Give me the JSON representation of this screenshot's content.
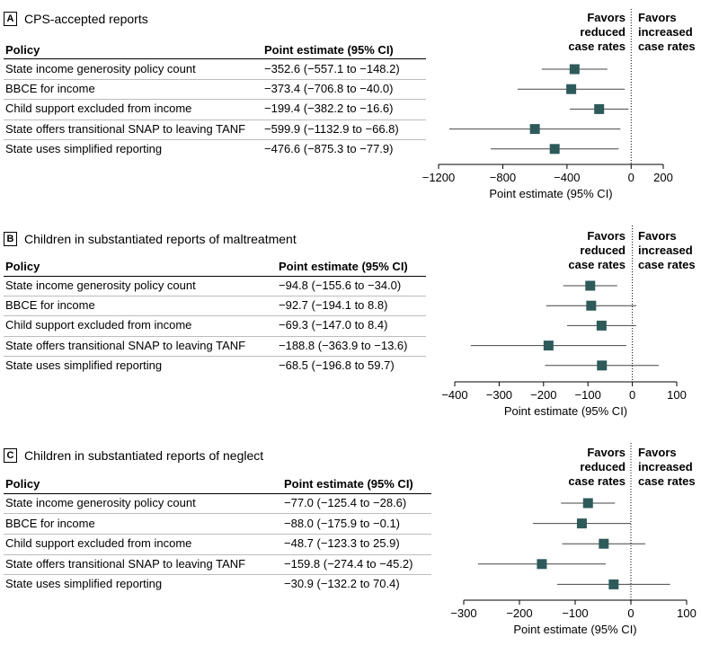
{
  "colors": {
    "marker": "#2e5b5a",
    "axis": "#000000",
    "whisker": "#444444",
    "grid_rule": "#bdbdbd"
  },
  "headers": {
    "policy": "Policy",
    "estimate": "Point estimate (95% CI)"
  },
  "favors": {
    "reduced": [
      "Favors",
      "reduced",
      "case rates"
    ],
    "increased": [
      "Favors",
      "increased",
      "case rates"
    ]
  },
  "chart_data": [
    {
      "type": "forest",
      "panel_label": "A",
      "title": "CPS-accepted reports",
      "xlabel": "Point estimate (95% CI)",
      "xlim": [
        -1200,
        200
      ],
      "xticks": [
        -1200,
        -800,
        -400,
        0,
        200
      ],
      "xtick_labels": [
        "−1200",
        "−800",
        "−400",
        "0",
        "200"
      ],
      "rows": [
        {
          "policy": "State income generosity policy count",
          "estimate_text": "−352.6 (−557.1 to −148.2)",
          "est": -352.6,
          "lo": -557.1,
          "hi": -148.2
        },
        {
          "policy": "BBCE for income",
          "estimate_text": "−373.4 (−706.8 to −40.0)",
          "est": -373.4,
          "lo": -706.8,
          "hi": -40.0
        },
        {
          "policy": "Child support excluded from income",
          "estimate_text": "−199.4 (−382.2 to −16.6)",
          "est": -199.4,
          "lo": -382.2,
          "hi": -16.6
        },
        {
          "policy": "State offers transitional SNAP to leaving TANF",
          "estimate_text": "−599.9 (−1132.9 to −66.8)",
          "est": -599.9,
          "lo": -1132.9,
          "hi": -66.8
        },
        {
          "policy": "State uses simplified reporting",
          "estimate_text": "−476.6 (−875.3 to −77.9)",
          "est": -476.6,
          "lo": -875.3,
          "hi": -77.9
        }
      ]
    },
    {
      "type": "forest",
      "panel_label": "B",
      "title": "Children in substantiated reports of maltreatment",
      "xlabel": "Point estimate (95% CI)",
      "xlim": [
        -400,
        100
      ],
      "xticks": [
        -400,
        -300,
        -200,
        -100,
        0,
        100
      ],
      "xtick_labels": [
        "−400",
        "−300",
        "−200",
        "−100",
        "0",
        "100"
      ],
      "rows": [
        {
          "policy": "State income generosity policy count",
          "estimate_text": "−94.8 (−155.6 to −34.0)",
          "est": -94.8,
          "lo": -155.6,
          "hi": -34.0
        },
        {
          "policy": "BBCE for income",
          "estimate_text": "−92.7 (−194.1 to 8.8)",
          "est": -92.7,
          "lo": -194.1,
          "hi": 8.8
        },
        {
          "policy": "Child support excluded from income",
          "estimate_text": "−69.3 (−147.0 to 8.4)",
          "est": -69.3,
          "lo": -147.0,
          "hi": 8.4
        },
        {
          "policy": "State offers transitional SNAP to leaving TANF",
          "estimate_text": "−188.8 (−363.9 to −13.6)",
          "est": -188.8,
          "lo": -363.9,
          "hi": -13.6
        },
        {
          "policy": "State uses simplified reporting",
          "estimate_text": "−68.5 (−196.8 to 59.7)",
          "est": -68.5,
          "lo": -196.8,
          "hi": 59.7
        }
      ]
    },
    {
      "type": "forest",
      "panel_label": "C",
      "title": "Children in substantiated reports of neglect",
      "xlabel": "Point estimate (95% CI)",
      "xlim": [
        -300,
        100
      ],
      "xticks": [
        -300,
        -200,
        -100,
        0,
        100
      ],
      "xtick_labels": [
        "−300",
        "−200",
        "−100",
        "0",
        "100"
      ],
      "rows": [
        {
          "policy": "State income generosity policy count",
          "estimate_text": "−77.0 (−125.4 to −28.6)",
          "est": -77.0,
          "lo": -125.4,
          "hi": -28.6
        },
        {
          "policy": "BBCE for income",
          "estimate_text": "−88.0 (−175.9 to −0.1)",
          "est": -88.0,
          "lo": -175.9,
          "hi": -0.1
        },
        {
          "policy": "Child support excluded from income",
          "estimate_text": "−48.7 (−123.3 to 25.9)",
          "est": -48.7,
          "lo": -123.3,
          "hi": 25.9
        },
        {
          "policy": "State offers transitional SNAP to leaving TANF",
          "estimate_text": "−159.8 (−274.4 to −45.2)",
          "est": -159.8,
          "lo": -274.4,
          "hi": -45.2
        },
        {
          "policy": "State uses simplified reporting",
          "estimate_text": "−30.9 (−132.2 to 70.4)",
          "est": -30.9,
          "lo": -132.2,
          "hi": 70.4
        }
      ]
    }
  ]
}
